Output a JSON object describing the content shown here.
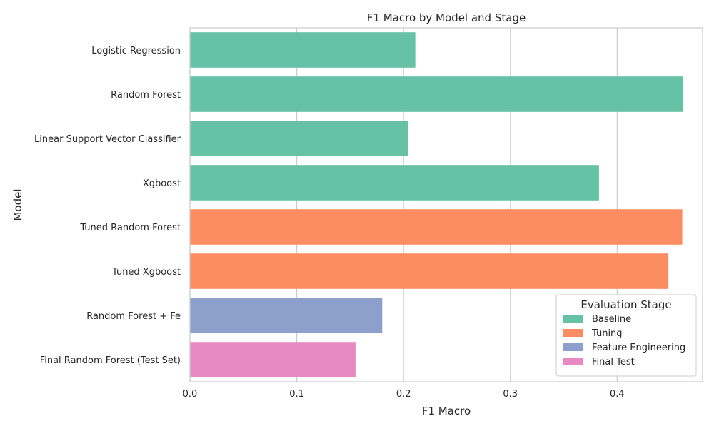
{
  "chart_data": {
    "type": "bar",
    "orientation": "horizontal",
    "title": "F1 Macro by Model and Stage",
    "xlabel": "F1 Macro",
    "ylabel": "Model",
    "xlim": [
      0,
      0.48
    ],
    "xticks": [
      0.0,
      0.1,
      0.2,
      0.3,
      0.4
    ],
    "xtick_labels": [
      "0.0",
      "0.1",
      "0.2",
      "0.3",
      "0.4"
    ],
    "grid": true,
    "legend": {
      "title": "Evaluation Stage",
      "placement": "lower-right",
      "entries": [
        {
          "name": "Baseline",
          "color": "#66c2a5"
        },
        {
          "name": "Tuning",
          "color": "#fc8d62"
        },
        {
          "name": "Feature Engineering",
          "color": "#8da0cb"
        },
        {
          "name": "Final Test",
          "color": "#e78ac3"
        }
      ]
    },
    "categories": [
      "Logistic Regression",
      "Random Forest",
      "Linear Support Vector Classifier",
      "Xgboost",
      "Tuned Random Forest",
      "Tuned Xgboost",
      "Random Forest + Fe",
      "Final Random Forest (Test Set)"
    ],
    "values": [
      0.211,
      0.462,
      0.204,
      0.383,
      0.461,
      0.448,
      0.18,
      0.155
    ],
    "stages": [
      "Baseline",
      "Baseline",
      "Baseline",
      "Baseline",
      "Tuning",
      "Tuning",
      "Feature Engineering",
      "Final Test"
    ]
  }
}
